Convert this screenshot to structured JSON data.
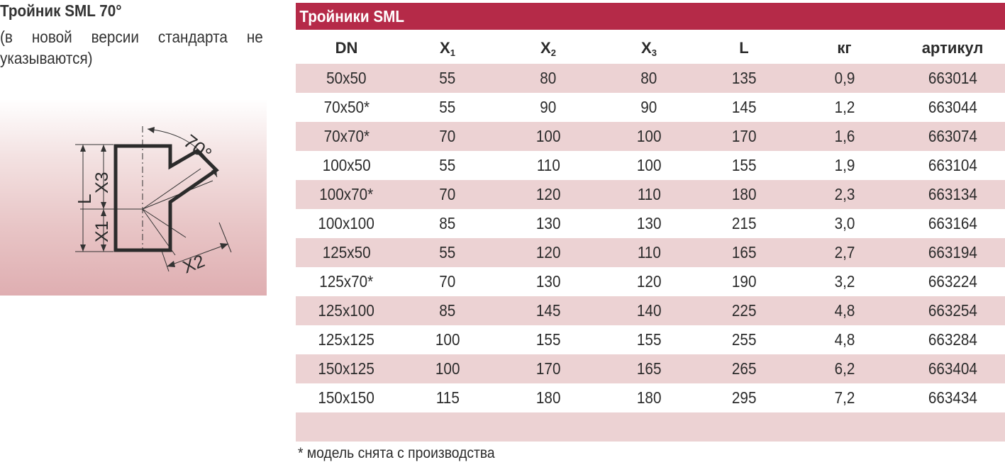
{
  "left": {
    "title": "Тройник SML 70°",
    "subtitle_line1": "(в новой версии стандарта не",
    "subtitle_line2": "указываются)"
  },
  "diagram": {
    "angle_label": "70°",
    "label_l": "L",
    "label_x1": "X1",
    "label_x2": "X2",
    "label_x3": "X3"
  },
  "table": {
    "title": "Тройники SML",
    "headers": [
      {
        "main": "DN",
        "sub": ""
      },
      {
        "main": "X",
        "sub": "1"
      },
      {
        "main": "X",
        "sub": "2"
      },
      {
        "main": "X",
        "sub": "3"
      },
      {
        "main": "L",
        "sub": ""
      },
      {
        "main": "кг",
        "sub": ""
      },
      {
        "main": "артикул",
        "sub": ""
      }
    ],
    "rows": [
      [
        "50x50",
        "55",
        "80",
        "80",
        "135",
        "0,9",
        "663014"
      ],
      [
        "70x50*",
        "55",
        "90",
        "90",
        "145",
        "1,2",
        "663044"
      ],
      [
        "70x70*",
        "70",
        "100",
        "100",
        "170",
        "1,6",
        "663074"
      ],
      [
        "100x50",
        "55",
        "110",
        "100",
        "155",
        "1,9",
        "663104"
      ],
      [
        "100x70*",
        "70",
        "120",
        "110",
        "180",
        "2,3",
        "663134"
      ],
      [
        "100x100",
        "85",
        "130",
        "130",
        "215",
        "3,0",
        "663164"
      ],
      [
        "125x50",
        "55",
        "120",
        "110",
        "165",
        "2,7",
        "663194"
      ],
      [
        "125x70*",
        "70",
        "130",
        "120",
        "190",
        "3,2",
        "663224"
      ],
      [
        "125x100",
        "85",
        "145",
        "140",
        "225",
        "4,8",
        "663254"
      ],
      [
        "125x125",
        "100",
        "155",
        "155",
        "255",
        "4,8",
        "663284"
      ],
      [
        "150x125",
        "100",
        "170",
        "165",
        "265",
        "6,2",
        "663404"
      ],
      [
        "150x150",
        "115",
        "180",
        "180",
        "295",
        "7,2",
        "663434"
      ]
    ]
  },
  "footnote": "* модель снята с производства",
  "colors": {
    "accent": "#b52a48",
    "row_shade": "#ecd2d3",
    "text": "#2b2b2b"
  }
}
